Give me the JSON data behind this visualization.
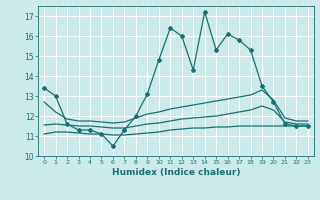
{
  "xlabel": "Humidex (Indice chaleur)",
  "xlim": [
    -0.5,
    23.5
  ],
  "ylim": [
    10,
    17.5
  ],
  "yticks": [
    10,
    11,
    12,
    13,
    14,
    15,
    16,
    17
  ],
  "xticks": [
    0,
    1,
    2,
    3,
    4,
    5,
    6,
    7,
    8,
    9,
    10,
    11,
    12,
    13,
    14,
    15,
    16,
    17,
    18,
    19,
    20,
    21,
    22,
    23
  ],
  "bg_color": "#cceaea",
  "grid_color": "#ffffff",
  "line_color": "#1a7070",
  "line1_x": [
    0,
    1,
    2,
    3,
    4,
    5,
    6,
    7,
    8,
    9,
    10,
    11,
    12,
    13,
    14,
    15,
    16,
    17,
    18,
    19,
    20,
    21,
    22,
    23
  ],
  "line1_y": [
    13.4,
    13.0,
    11.6,
    11.3,
    11.3,
    11.1,
    10.5,
    11.3,
    12.0,
    13.1,
    14.8,
    16.4,
    16.0,
    14.3,
    17.2,
    15.3,
    16.1,
    15.8,
    15.3,
    13.5,
    12.7,
    11.6,
    11.5,
    11.5
  ],
  "line2_x": [
    0,
    1,
    2,
    3,
    4,
    5,
    6,
    7,
    8,
    9,
    10,
    11,
    12,
    13,
    14,
    15,
    16,
    17,
    18,
    19,
    20,
    21,
    22,
    23
  ],
  "line2_y": [
    12.7,
    12.2,
    11.85,
    11.75,
    11.75,
    11.7,
    11.65,
    11.7,
    11.9,
    12.1,
    12.2,
    12.35,
    12.45,
    12.55,
    12.65,
    12.75,
    12.85,
    12.95,
    13.05,
    13.3,
    12.8,
    11.9,
    11.75,
    11.75
  ],
  "line3_x": [
    0,
    1,
    2,
    3,
    4,
    5,
    6,
    7,
    8,
    9,
    10,
    11,
    12,
    13,
    14,
    15,
    16,
    17,
    18,
    19,
    20,
    21,
    22,
    23
  ],
  "line3_y": [
    11.55,
    11.6,
    11.55,
    11.5,
    11.5,
    11.45,
    11.4,
    11.4,
    11.5,
    11.6,
    11.65,
    11.75,
    11.85,
    11.9,
    11.95,
    12.0,
    12.1,
    12.2,
    12.3,
    12.5,
    12.3,
    11.7,
    11.6,
    11.6
  ],
  "line4_x": [
    0,
    1,
    2,
    3,
    4,
    5,
    6,
    7,
    8,
    9,
    10,
    11,
    12,
    13,
    14,
    15,
    16,
    17,
    18,
    19,
    20,
    21,
    22,
    23
  ],
  "line4_y": [
    11.1,
    11.2,
    11.2,
    11.15,
    11.1,
    11.1,
    11.05,
    11.05,
    11.1,
    11.15,
    11.2,
    11.3,
    11.35,
    11.4,
    11.4,
    11.45,
    11.45,
    11.5,
    11.5,
    11.5,
    11.5,
    11.5,
    11.5,
    11.5
  ]
}
